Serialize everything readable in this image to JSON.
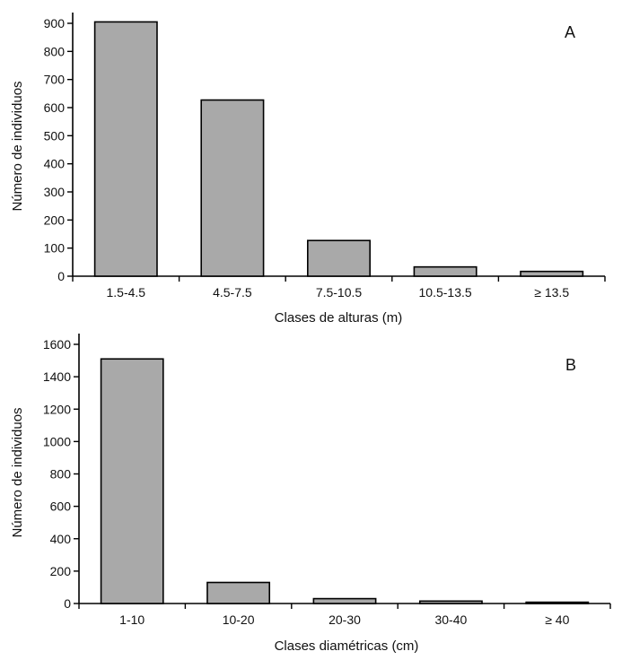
{
  "colors": {
    "bar_fill": "#a9a9a9",
    "bar_stroke": "#000000",
    "axis": "#000000",
    "background": "#ffffff"
  },
  "chart_data": [
    {
      "type": "bar",
      "panel_label": "A",
      "categories": [
        "1.5-4.5",
        "4.5-7.5",
        "7.5-10.5",
        "10.5-13.5",
        "≥ 13.5"
      ],
      "values": [
        905,
        627,
        127,
        33,
        17
      ],
      "ylim": [
        0,
        900
      ],
      "yticks": [
        0,
        100,
        200,
        300,
        400,
        500,
        600,
        700,
        800,
        900
      ],
      "xlabel": "Clases de alturas (m)",
      "ylabel": "Número de individuos",
      "grid": false
    },
    {
      "type": "bar",
      "panel_label": "B",
      "categories": [
        "1-10",
        "10-20",
        "20-30",
        "30-40",
        "≥ 40"
      ],
      "values": [
        1510,
        130,
        30,
        15,
        8
      ],
      "ylim": [
        0,
        1600
      ],
      "yticks": [
        0,
        200,
        400,
        600,
        800,
        1000,
        1200,
        1400,
        1600
      ],
      "xlabel": "Clases diamétricas (cm)",
      "ylabel": "Número de individuos",
      "grid": false
    }
  ]
}
